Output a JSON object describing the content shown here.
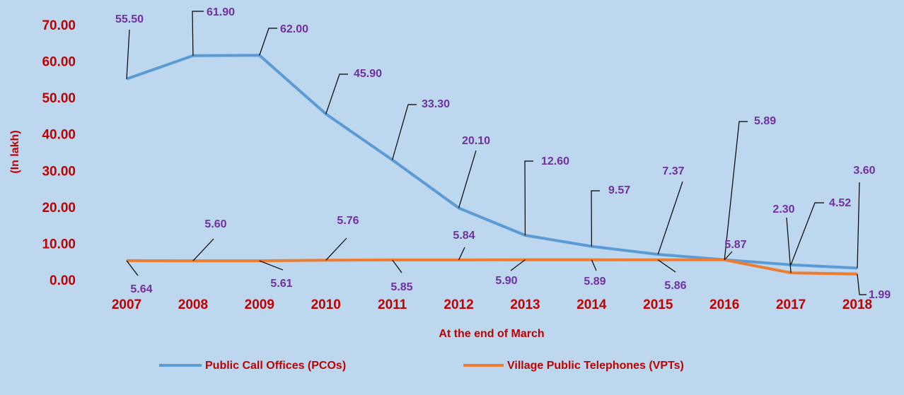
{
  "chart_data": {
    "type": "line",
    "x_label": "At the end of March",
    "y_label": "(In lakh)",
    "categories": [
      "2007",
      "2008",
      "2009",
      "2010",
      "2011",
      "2012",
      "2013",
      "2014",
      "2015",
      "2016",
      "2017",
      "2018"
    ],
    "series": [
      {
        "name": "Public Call Offices (PCOs)",
        "color": "#5b9bd5",
        "values": [
          55.5,
          61.9,
          62,
          45.9,
          33.3,
          20.1,
          12.6,
          9.57,
          7.37,
          5.89,
          4.52,
          3.6
        ],
        "value_labels": [
          "55.50",
          "61.90",
          "62.00",
          "45.90",
          "33.30",
          "20.10",
          "12.60",
          "9.57",
          "7.37",
          "5.89",
          "4.52",
          "3.60"
        ]
      },
      {
        "name": "Village Public Telephones (VPTs)",
        "color": "#ed7d31",
        "values": [
          5.64,
          5.6,
          5.61,
          5.76,
          5.85,
          5.84,
          5.9,
          5.89,
          5.86,
          5.87,
          2.3,
          1.99
        ],
        "value_labels": [
          "5.64",
          "5.60",
          "5.61",
          "5.76",
          "5.85",
          "5.84",
          "5.90",
          "5.89",
          "5.86",
          "5.87",
          "2.30",
          "1.99"
        ]
      }
    ],
    "ylim": [
      0,
      70
    ],
    "yticks": [
      {
        "value": 0,
        "label": "0.00"
      },
      {
        "value": 10,
        "label": "10.00"
      },
      {
        "value": 20,
        "label": "20.00"
      },
      {
        "value": 30,
        "label": "30.00"
      },
      {
        "value": 40,
        "label": "40.00"
      },
      {
        "value": 50,
        "label": "50.00"
      },
      {
        "value": 60,
        "label": "60.00"
      },
      {
        "value": 70,
        "label": "70.00"
      }
    ],
    "legend": "bottom"
  }
}
